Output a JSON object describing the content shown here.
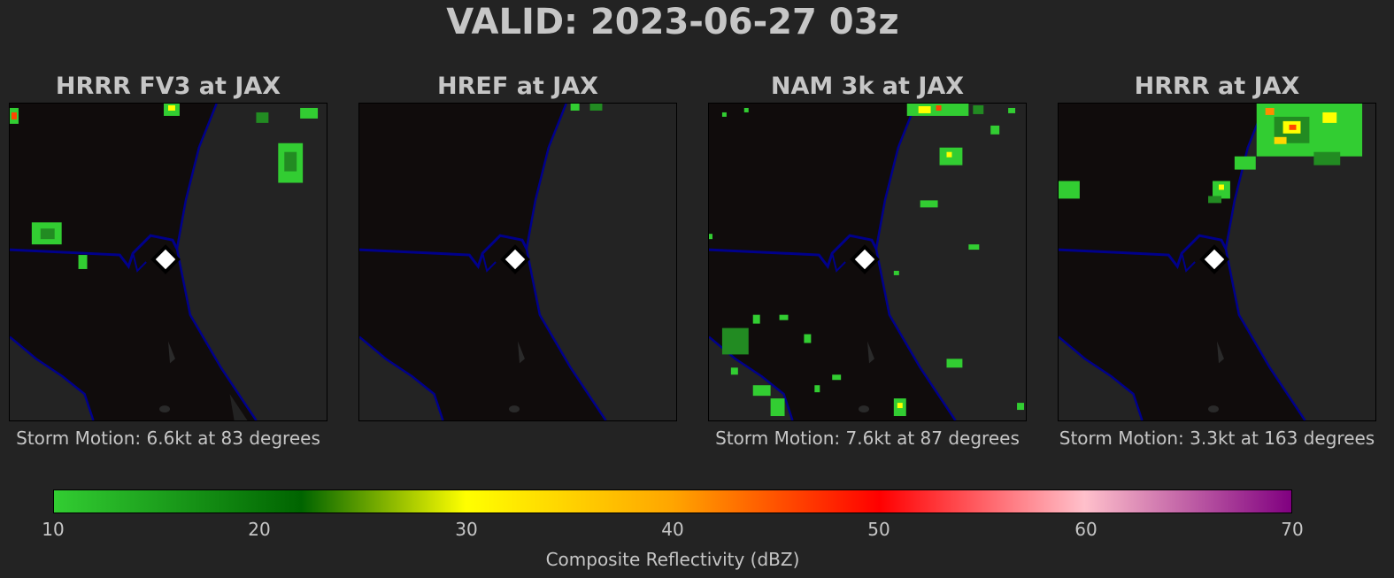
{
  "title": "VALID: 2023-06-27 03z",
  "panels": [
    {
      "title": "HRRR FV3 at JAX",
      "storm_motion": "Storm Motion: 6.6kt at 83 degrees"
    },
    {
      "title": "HREF at JAX",
      "storm_motion": ""
    },
    {
      "title": "NAM 3k at JAX",
      "storm_motion": "Storm Motion: 7.6kt at 87 degrees"
    },
    {
      "title": "HRRR at JAX",
      "storm_motion": "Storm Motion: 3.3kt at 163 degrees"
    }
  ],
  "colorbar": {
    "label": "Composite Reflectivity (dBZ)",
    "ticks": [
      "10",
      "20",
      "30",
      "40",
      "50",
      "60",
      "70"
    ],
    "colors": [
      "#32cd32",
      "#006400",
      "#ffff00",
      "#ffa500",
      "#ff0000",
      "#ffc0cb",
      "#800080"
    ]
  },
  "map_colors": {
    "land": "#100c0c",
    "water": "#232323",
    "boundary": "#00008b",
    "station_marker": "#ffffff"
  }
}
